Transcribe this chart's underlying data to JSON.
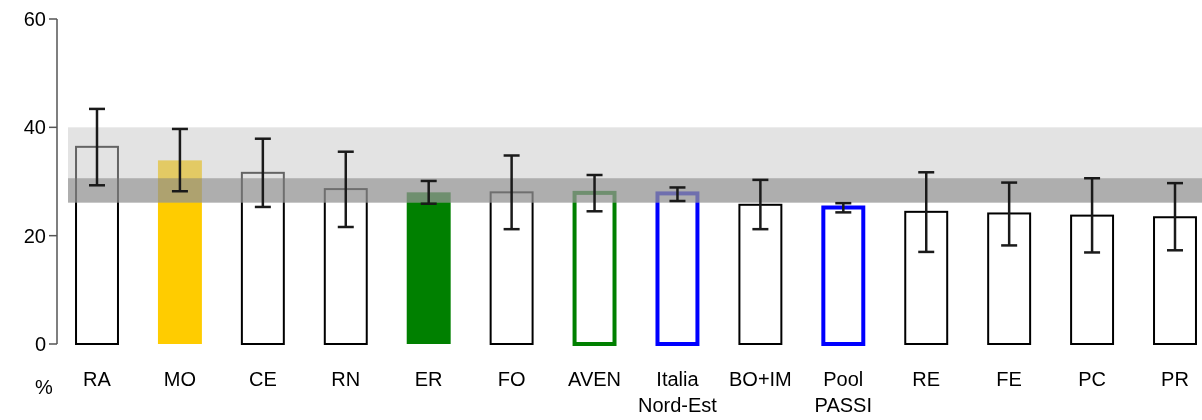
{
  "chart_data": {
    "type": "bar",
    "ylabel": "%",
    "categories": [
      "RA",
      "MO",
      "CE",
      "RN",
      "ER",
      "FO",
      "AVEN",
      "Italia\nNord-Est",
      "BO+IM",
      "Pool\nPASSI",
      "RE",
      "FE",
      "PC",
      "PR"
    ],
    "series": [
      {
        "colors": [
          "#000000",
          null,
          "#000000",
          "#000000",
          null,
          "#000000",
          "#008000",
          "#0000ff",
          "#000000",
          "#0000ff",
          "#000000",
          "#000000",
          "#000000",
          "#000000"
        ],
        "values": [
          36.4,
          null,
          31.6,
          28.6,
          null,
          28.0,
          27.9,
          27.8,
          25.7,
          25.2,
          24.4,
          24.1,
          23.7,
          23.4
        ],
        "errors": [
          [
            29.3,
            43.4
          ],
          null,
          [
            25.3,
            37.9
          ],
          [
            21.6,
            35.5
          ],
          null,
          [
            21.2,
            34.8
          ],
          [
            24.5,
            31.2
          ],
          [
            26.4,
            28.9
          ],
          [
            21.2,
            30.3
          ],
          [
            24.3,
            26.0
          ],
          [
            17.0,
            31.7
          ],
          [
            18.2,
            29.8
          ],
          [
            16.9,
            30.6
          ],
          [
            17.3,
            29.7
          ]
        ]
      },
      {
        "colors": [
          null,
          "#ffcc00",
          null,
          null,
          "#008000",
          null,
          null,
          null,
          null,
          null,
          null,
          null,
          null,
          null
        ],
        "values": [
          null,
          33.9,
          null,
          null,
          28.0,
          null,
          null,
          null,
          null,
          null,
          null,
          null,
          null,
          null
        ],
        "errors": [
          null,
          [
            28.2,
            39.7
          ],
          null,
          null,
          [
            25.9,
            30.1
          ],
          null,
          null,
          null,
          null,
          null,
          null,
          null,
          null,
          null
        ]
      }
    ],
    "ylim": [
      0,
      60
    ],
    "yticks": [
      0,
      20,
      40,
      60
    ],
    "bands": [
      {
        "axis": "y",
        "from": 26.1,
        "to": 40,
        "color": "#c8c8c8"
      },
      {
        "axis": "y",
        "from": 26.1,
        "to": 30.6,
        "color": "#7a7a7a"
      }
    ]
  }
}
